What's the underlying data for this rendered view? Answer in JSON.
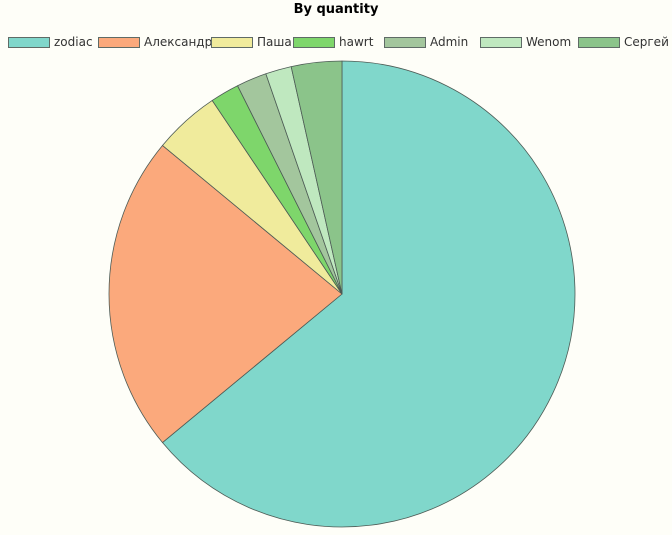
{
  "chart_data": {
    "type": "pie",
    "title": "By quantity",
    "legend_position": "top",
    "slices": [
      {
        "name": "zodiac",
        "value": 64.0,
        "color": "#80d7cb"
      },
      {
        "name": "Александр",
        "value": 22.0,
        "color": "#fba97c"
      },
      {
        "name": "Паша",
        "value": 4.6,
        "color": "#f0eb9c"
      },
      {
        "name": "hawrt",
        "value": 2.0,
        "color": "#7ed66b"
      },
      {
        "name": "Admin",
        "value": 2.1,
        "color": "#a3c69d"
      },
      {
        "name": "Wenom",
        "value": 1.8,
        "color": "#bfe8bf"
      },
      {
        "name": "Сергей",
        "value": 3.5,
        "color": "#8bc48a"
      }
    ],
    "slice_border_color": "#4d5b55"
  }
}
